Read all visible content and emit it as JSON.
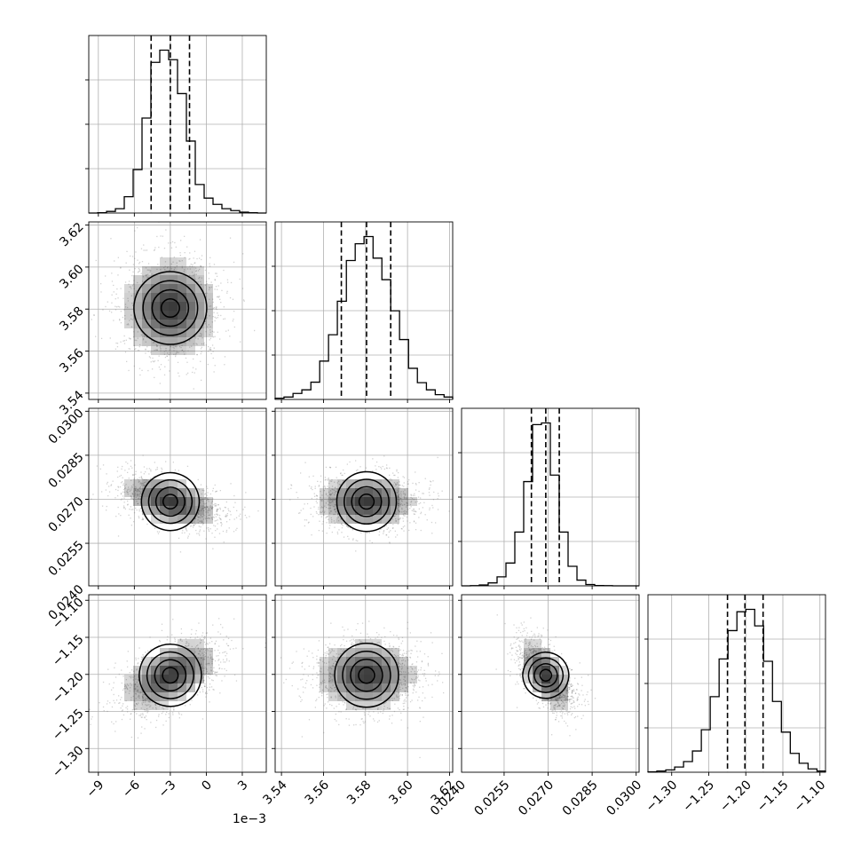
{
  "chart_data": {
    "type": "corner",
    "parameters": [
      {
        "range": [
          -9.8,
          5.0
        ],
        "ticks": [
          -9,
          -6,
          -3,
          0,
          3
        ],
        "tick_labels": [
          "−9",
          "−6",
          "−3",
          "0",
          "3"
        ],
        "offset_label": "1e−3",
        "quantiles": [
          -4.6,
          -3.0,
          -1.4
        ],
        "hist_bins": [
          -9.8,
          -9.06,
          -8.32,
          -7.58,
          -6.84,
          -6.1,
          -5.36,
          -4.62,
          -3.88,
          -3.14,
          -2.4,
          -1.66,
          -0.92,
          -0.18,
          0.56,
          1.3,
          2.04,
          2.78,
          3.52,
          4.26,
          5.0
        ],
        "hist_counts": [
          0,
          1,
          6,
          16,
          60,
          160,
          350,
          555,
          600,
          565,
          440,
          265,
          105,
          55,
          32,
          16,
          9,
          3,
          1,
          0
        ]
      },
      {
        "range": [
          3.537,
          3.6215
        ],
        "ticks": [
          3.54,
          3.56,
          3.58,
          3.6,
          3.62
        ],
        "tick_labels": [
          "3.54",
          "3.56",
          "3.58",
          "3.60",
          "3.62"
        ],
        "offset_label": "",
        "quantiles": [
          3.5685,
          3.5805,
          3.592
        ],
        "hist_bins": [
          3.537,
          3.5412,
          3.5455,
          3.5497,
          3.554,
          3.5582,
          3.5624,
          3.5666,
          3.5709,
          3.5751,
          3.5793,
          3.5836,
          3.5878,
          3.592,
          3.5962,
          3.6005,
          3.6047,
          3.609,
          3.6132,
          3.6174,
          3.6215
        ],
        "hist_counts": [
          5,
          10,
          25,
          40,
          72,
          160,
          270,
          410,
          580,
          650,
          680,
          590,
          500,
          370,
          250,
          130,
          70,
          40,
          20,
          10
        ]
      },
      {
        "range": [
          0.02405,
          0.0301
        ],
        "ticks": [
          0.024,
          0.0255,
          0.027,
          0.0285,
          0.03
        ],
        "tick_labels": [
          "0.0240",
          "0.0255",
          "0.0270",
          "0.0285",
          "0.0300"
        ],
        "offset_label": "",
        "quantiles": [
          0.02643,
          0.02692,
          0.02738
        ],
        "hist_bins": [
          0.02405,
          0.024352,
          0.024655,
          0.024957,
          0.02526,
          0.025563,
          0.025865,
          0.026167,
          0.02647,
          0.026772,
          0.027075,
          0.027377,
          0.02768,
          0.027983,
          0.028285,
          0.028587,
          0.02889,
          0.029192,
          0.029495,
          0.029797,
          0.0301
        ],
        "hist_counts": [
          0,
          1,
          5,
          18,
          55,
          140,
          330,
          640,
          990,
          1000,
          680,
          330,
          120,
          35,
          8,
          2,
          1,
          0,
          0,
          0
        ]
      },
      {
        "range": [
          -1.332,
          -1.0925
        ],
        "ticks": [
          -1.3,
          -1.25,
          -1.2,
          -1.15,
          -1.1
        ],
        "tick_labels": [
          "−1.30",
          "−1.25",
          "−1.20",
          "−1.15",
          "−1.10"
        ],
        "offset_label": "",
        "quantiles": [
          -1.2247,
          -1.2012,
          -1.1767
        ],
        "hist_bins": [
          -1.332,
          -1.32,
          -1.308,
          -1.296,
          -1.284,
          -1.272,
          -1.26,
          -1.248,
          -1.236,
          -1.224,
          -1.212,
          -1.2,
          -1.188,
          -1.176,
          -1.164,
          -1.152,
          -1.14,
          -1.128,
          -1.116,
          -1.104,
          -1.0925
        ],
        "hist_counts": [
          2,
          5,
          10,
          22,
          45,
          90,
          180,
          320,
          480,
          600,
          680,
          690,
          620,
          470,
          300,
          170,
          80,
          38,
          14,
          5
        ]
      }
    ],
    "pairs": [
      {
        "row": 1,
        "col": 0,
        "mean": [
          -3.0,
          3.5805
        ],
        "sd": [
          2.1,
          0.0125
        ],
        "corr": 0.0
      },
      {
        "row": 2,
        "col": 0,
        "mean": [
          -3.0,
          0.02692
        ],
        "sd": [
          2.1,
          0.00048
        ],
        "corr": -0.45
      },
      {
        "row": 2,
        "col": 1,
        "mean": [
          3.5805,
          0.02692
        ],
        "sd": [
          0.0125,
          0.00048
        ],
        "corr": 0.0
      },
      {
        "row": 3,
        "col": 0,
        "mean": [
          -3.0,
          -1.2012
        ],
        "sd": [
          2.1,
          0.0245
        ],
        "corr": 0.5
      },
      {
        "row": 3,
        "col": 1,
        "mean": [
          3.5805,
          -1.2012
        ],
        "sd": [
          0.0125,
          0.0245
        ],
        "corr": 0.0
      },
      {
        "row": 3,
        "col": 2,
        "mean": [
          0.02692,
          -1.2012
        ],
        "sd": [
          0.00048,
          0.0245
        ],
        "corr": -0.6
      }
    ],
    "contour_levels_sigma": [
      0.5,
      1.0,
      1.5,
      2.0
    ],
    "grid": true,
    "colors": {
      "line": "#000000",
      "density": "#000000",
      "points": "#7f7f7f",
      "grid": "#b0b0b0"
    }
  }
}
